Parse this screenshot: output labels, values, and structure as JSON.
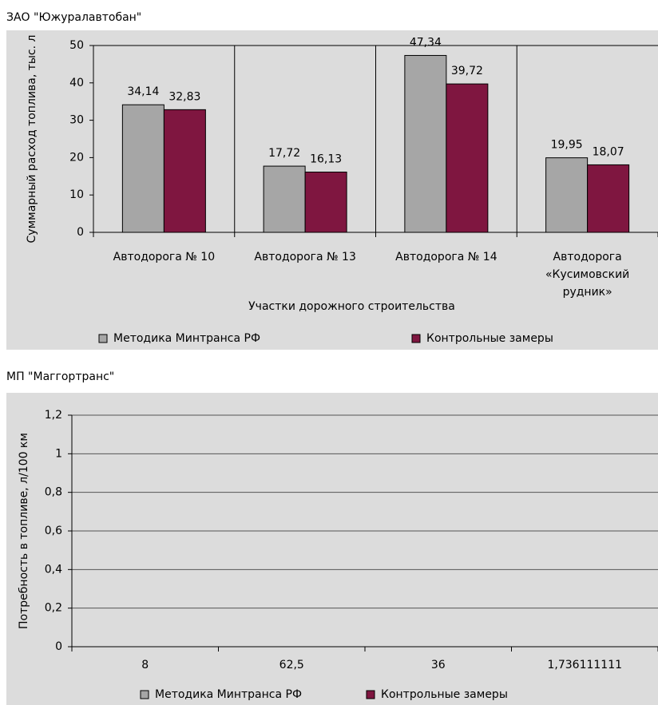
{
  "chart_data": [
    {
      "type": "bar",
      "title": "ЗАО \"Южуралавтобан\"",
      "y_label": "Суммарный расход топлива, тыс. л",
      "x_label": "Участки дорожного строительства",
      "categories": [
        "Автодорога № 10",
        "Автодорога № 13",
        "Автодорога № 14",
        "Автодорога «Кусимовский рудник»"
      ],
      "series": [
        {
          "name": "Методика Минтранса РФ",
          "color": "#a6a6a6",
          "values": [
            34.14,
            17.72,
            47.34,
            19.95
          ],
          "value_labels": [
            "34,14",
            "17,72",
            "47,34",
            "19,95"
          ]
        },
        {
          "name": "Контрольные замеры",
          "color": "#7f1640",
          "values": [
            32.83,
            16.13,
            39.72,
            18.07
          ],
          "value_labels": [
            "32,83",
            "16,13",
            "39,72",
            "18,07"
          ]
        }
      ],
      "ylim": [
        0,
        50
      ],
      "yticks": [
        0,
        10,
        20,
        30,
        40,
        50
      ],
      "grid": false,
      "legend": "bottom"
    },
    {
      "type": "bar",
      "title": "МП \"Маггортранс\"",
      "y_label": "Потребность в топливе, л/100 км",
      "categories": [
        "8",
        "62,5",
        "36",
        "1,736111111"
      ],
      "series": [
        {
          "name": "Методика Минтранса РФ",
          "color": "#a6a6a6",
          "values": [
            null,
            null,
            null,
            null
          ]
        },
        {
          "name": "Контрольные замеры",
          "color": "#7f1640",
          "values": [
            null,
            null,
            null,
            null
          ]
        }
      ],
      "ylim": [
        0,
        1.2
      ],
      "yticks": [
        0,
        {
          "value": 0.2,
          "label": "0,2"
        },
        {
          "value": 0.4,
          "label": "0,4"
        },
        {
          "value": 0.6,
          "label": "0,6"
        },
        {
          "value": 0.8,
          "label": "0,8"
        },
        1,
        {
          "value": 1.2,
          "label": "1,2"
        }
      ],
      "grid": true,
      "legend": "bottom"
    }
  ]
}
